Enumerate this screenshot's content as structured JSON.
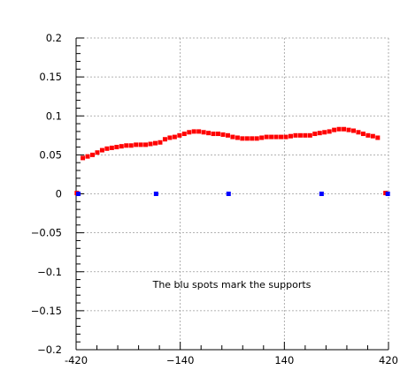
{
  "chart_data": {
    "type": "scatter",
    "title": "",
    "xlabel": "",
    "ylabel": "",
    "xlim": [
      -420,
      420
    ],
    "ylim": [
      -0.2,
      0.2
    ],
    "x_ticks": [
      {
        "value": -420,
        "label": "-420"
      },
      {
        "value": -140,
        "label": "−140"
      },
      {
        "value": 140,
        "label": "140"
      },
      {
        "value": 420,
        "label": "420"
      }
    ],
    "y_ticks": [
      {
        "value": 0.2,
        "label": "0.2"
      },
      {
        "value": 0.15,
        "label": "0.15"
      },
      {
        "value": 0.1,
        "label": "0.1"
      },
      {
        "value": 0.05,
        "label": "0.05"
      },
      {
        "value": 0,
        "label": "0"
      },
      {
        "value": -0.05,
        "label": "−0.05"
      },
      {
        "value": -0.1,
        "label": "−0.1"
      },
      {
        "value": -0.15,
        "label": "−0.15"
      },
      {
        "value": -0.2,
        "label": "−0.2"
      }
    ],
    "grid": true,
    "annotation": "The blu spots mark the supports",
    "series": [
      {
        "color": "#ff0000",
        "points": [
          {
            "x": -418,
            "y": 0.001
          },
          {
            "x": -402,
            "y": 0.046
          },
          {
            "x": -389,
            "y": 0.048
          },
          {
            "x": -376,
            "y": 0.05
          },
          {
            "x": -363,
            "y": 0.053
          },
          {
            "x": -350,
            "y": 0.056
          },
          {
            "x": -337,
            "y": 0.058
          },
          {
            "x": -324,
            "y": 0.059
          },
          {
            "x": -311,
            "y": 0.06
          },
          {
            "x": -298,
            "y": 0.061
          },
          {
            "x": -285,
            "y": 0.062
          },
          {
            "x": -272,
            "y": 0.062
          },
          {
            "x": -259,
            "y": 0.063
          },
          {
            "x": -246,
            "y": 0.063
          },
          {
            "x": -233,
            "y": 0.063
          },
          {
            "x": -220,
            "y": 0.064
          },
          {
            "x": -207,
            "y": 0.065
          },
          {
            "x": -194,
            "y": 0.066
          },
          {
            "x": -181,
            "y": 0.07
          },
          {
            "x": -168,
            "y": 0.072
          },
          {
            "x": -155,
            "y": 0.073
          },
          {
            "x": -142,
            "y": 0.075
          },
          {
            "x": -129,
            "y": 0.077
          },
          {
            "x": -116,
            "y": 0.079
          },
          {
            "x": -103,
            "y": 0.08
          },
          {
            "x": -90,
            "y": 0.08
          },
          {
            "x": -77,
            "y": 0.079
          },
          {
            "x": -64,
            "y": 0.078
          },
          {
            "x": -51,
            "y": 0.077
          },
          {
            "x": -38,
            "y": 0.077
          },
          {
            "x": -25,
            "y": 0.076
          },
          {
            "x": -12,
            "y": 0.075
          },
          {
            "x": 1,
            "y": 0.073
          },
          {
            "x": 14,
            "y": 0.072
          },
          {
            "x": 27,
            "y": 0.071
          },
          {
            "x": 40,
            "y": 0.071
          },
          {
            "x": 53,
            "y": 0.071
          },
          {
            "x": 66,
            "y": 0.071
          },
          {
            "x": 79,
            "y": 0.072
          },
          {
            "x": 92,
            "y": 0.073
          },
          {
            "x": 105,
            "y": 0.073
          },
          {
            "x": 118,
            "y": 0.073
          },
          {
            "x": 131,
            "y": 0.073
          },
          {
            "x": 144,
            "y": 0.073
          },
          {
            "x": 157,
            "y": 0.074
          },
          {
            "x": 170,
            "y": 0.075
          },
          {
            "x": 183,
            "y": 0.075
          },
          {
            "x": 196,
            "y": 0.075
          },
          {
            "x": 209,
            "y": 0.075
          },
          {
            "x": 222,
            "y": 0.077
          },
          {
            "x": 235,
            "y": 0.078
          },
          {
            "x": 248,
            "y": 0.079
          },
          {
            "x": 261,
            "y": 0.08
          },
          {
            "x": 274,
            "y": 0.082
          },
          {
            "x": 287,
            "y": 0.083
          },
          {
            "x": 300,
            "y": 0.083
          },
          {
            "x": 313,
            "y": 0.082
          },
          {
            "x": 326,
            "y": 0.081
          },
          {
            "x": 339,
            "y": 0.079
          },
          {
            "x": 352,
            "y": 0.077
          },
          {
            "x": 365,
            "y": 0.075
          },
          {
            "x": 378,
            "y": 0.074
          },
          {
            "x": 391,
            "y": 0.072
          },
          {
            "x": 412,
            "y": 0.001
          }
        ]
      },
      {
        "color": "#0000ff",
        "points": [
          {
            "x": -414,
            "y": 0.0
          },
          {
            "x": -205,
            "y": 0.0
          },
          {
            "x": -10,
            "y": 0.0
          },
          {
            "x": 240,
            "y": 0.0
          },
          {
            "x": 418,
            "y": 0.0
          }
        ]
      }
    ]
  }
}
